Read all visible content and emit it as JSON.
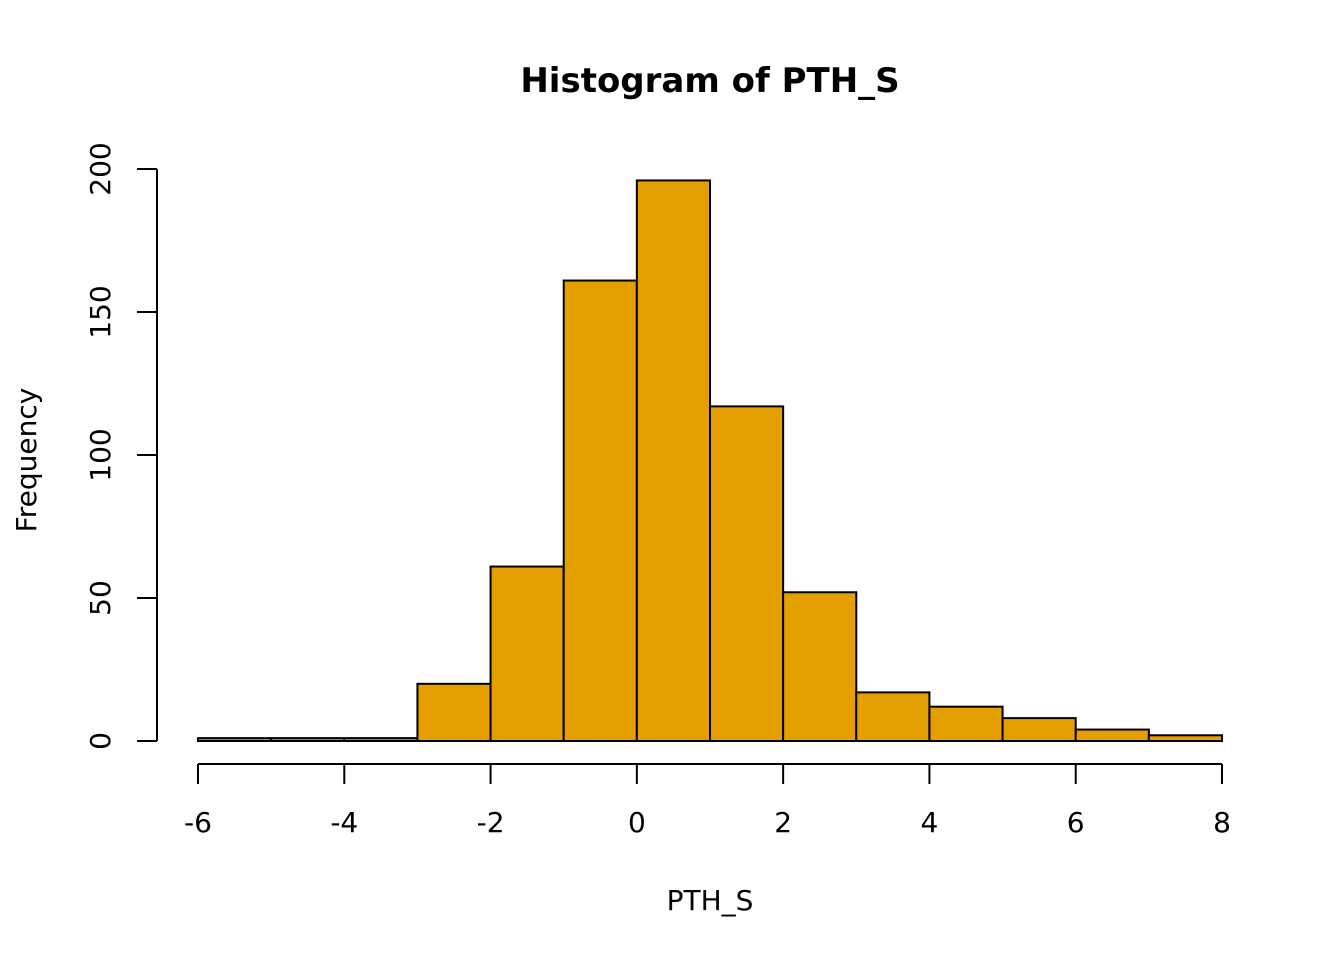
{
  "chart_data": {
    "type": "bar",
    "title": "Histogram of PTH_S",
    "xlabel": "PTH_S",
    "ylabel": "Frequency",
    "bins": [
      {
        "start": -6,
        "end": -5,
        "count": 1
      },
      {
        "start": -5,
        "end": -4,
        "count": 1
      },
      {
        "start": -4,
        "end": -3,
        "count": 1
      },
      {
        "start": -3,
        "end": -2,
        "count": 20
      },
      {
        "start": -2,
        "end": -1,
        "count": 61
      },
      {
        "start": -1,
        "end": 0,
        "count": 161
      },
      {
        "start": 0,
        "end": 1,
        "count": 196
      },
      {
        "start": 1,
        "end": 2,
        "count": 117
      },
      {
        "start": 2,
        "end": 3,
        "count": 52
      },
      {
        "start": 3,
        "end": 4,
        "count": 17
      },
      {
        "start": 4,
        "end": 5,
        "count": 12
      },
      {
        "start": 5,
        "end": 6,
        "count": 8
      },
      {
        "start": 6,
        "end": 7,
        "count": 4
      },
      {
        "start": 7,
        "end": 8,
        "count": 2
      }
    ],
    "xlim": [
      -6,
      8
    ],
    "ylim": [
      0,
      200
    ],
    "x_ticks": [
      -6,
      -4,
      -2,
      0,
      2,
      4,
      6,
      8
    ],
    "x_tick_labels": [
      "-6",
      "-4",
      "-2",
      "0",
      "2",
      "4",
      "6",
      "8"
    ],
    "y_ticks": [
      0,
      50,
      100,
      150,
      200
    ],
    "y_tick_labels": [
      "0",
      "50",
      "100",
      "150",
      "200"
    ],
    "bar_color": "#E69F00",
    "edge_color": "#000000",
    "grid": false,
    "legend": "none"
  }
}
